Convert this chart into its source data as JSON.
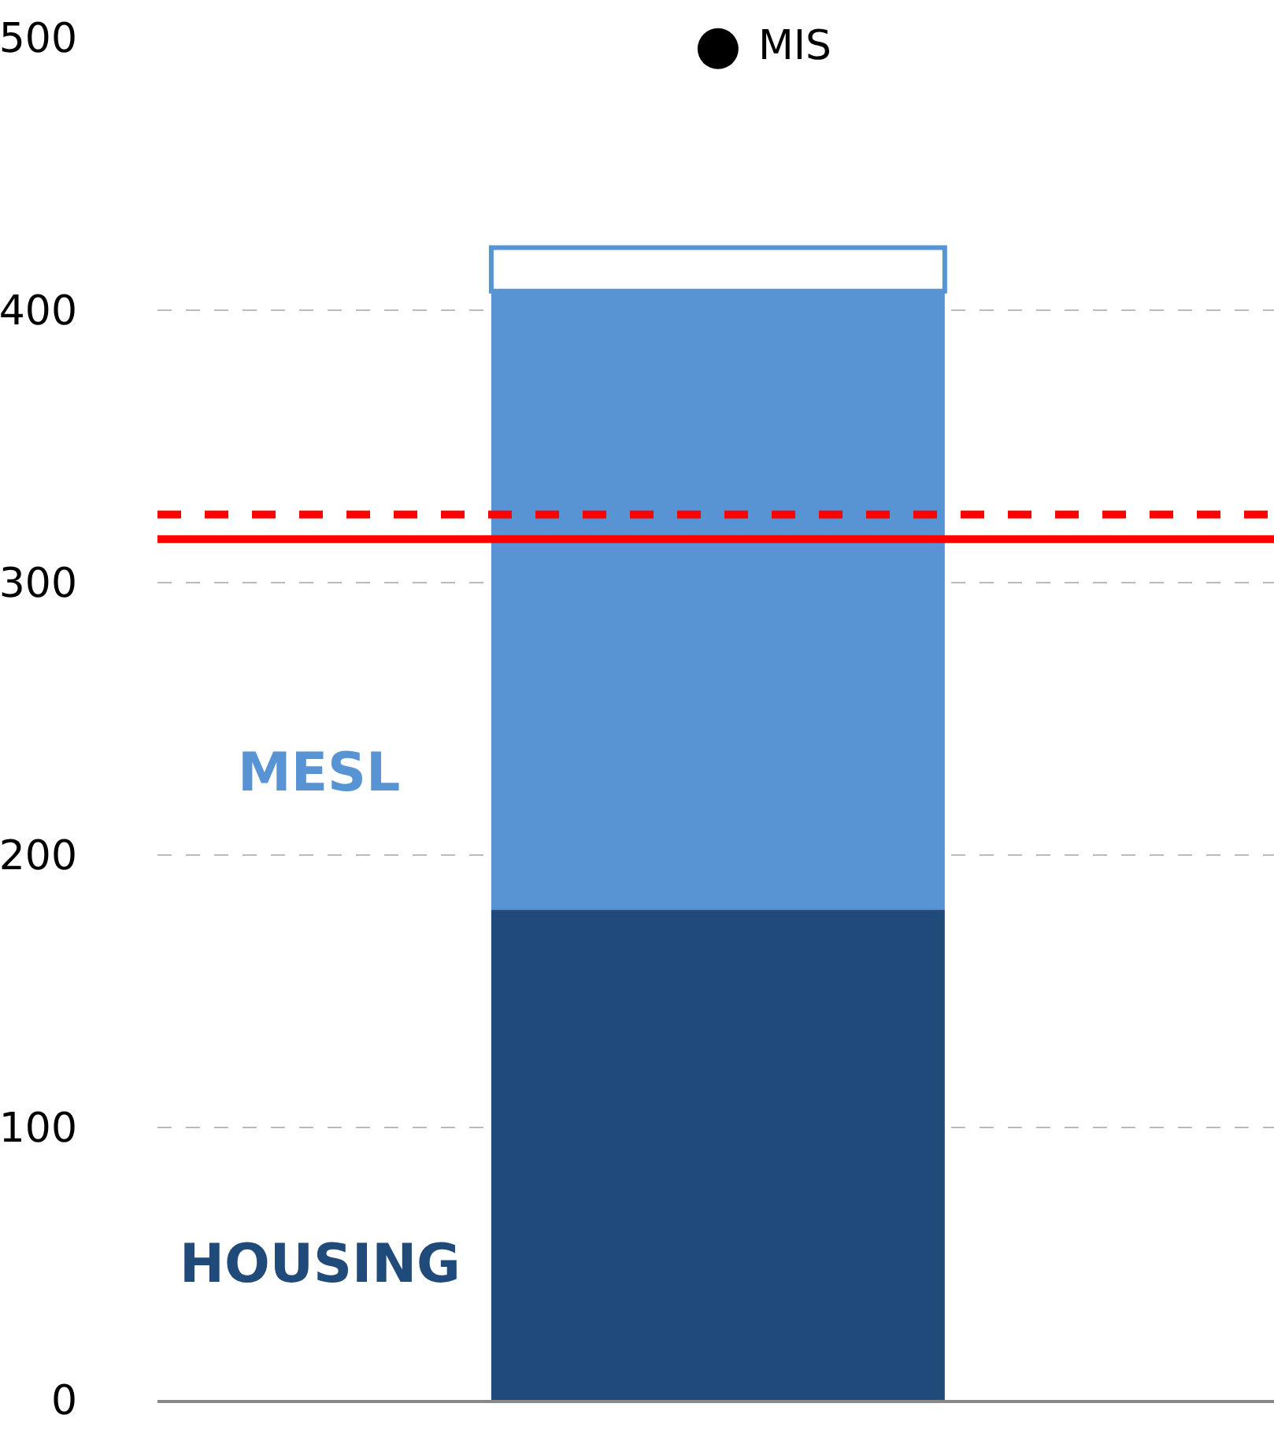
{
  "chart_data": {
    "type": "bar",
    "stacked": true,
    "categories": [
      null
    ],
    "ylim": [
      0,
      500
    ],
    "yticks": [
      0,
      100,
      200,
      300,
      400,
      500
    ],
    "grid": "y",
    "legend": false,
    "tick_labels": "y",
    "series": [
      {
        "name": "HOUSING",
        "color": "#1f4a7a",
        "values": [
          180
        ]
      },
      {
        "name": "MESL",
        "color": "#5893d4",
        "values": [
          227
        ]
      },
      {
        "color": "#ffffff",
        "values": [
          16
        ]
      },
      {
        "name": "MIS",
        "type": "scatter",
        "color": "#000000",
        "values": [
          496
        ],
        "marker": "circle"
      }
    ],
    "ref_lines": [
      {
        "axis": "y",
        "value": 316,
        "color": "#ff0000",
        "line_style": "solid"
      },
      {
        "axis": "y",
        "value": 325,
        "color": "#ff0000",
        "line_style": "dashed"
      }
    ]
  }
}
